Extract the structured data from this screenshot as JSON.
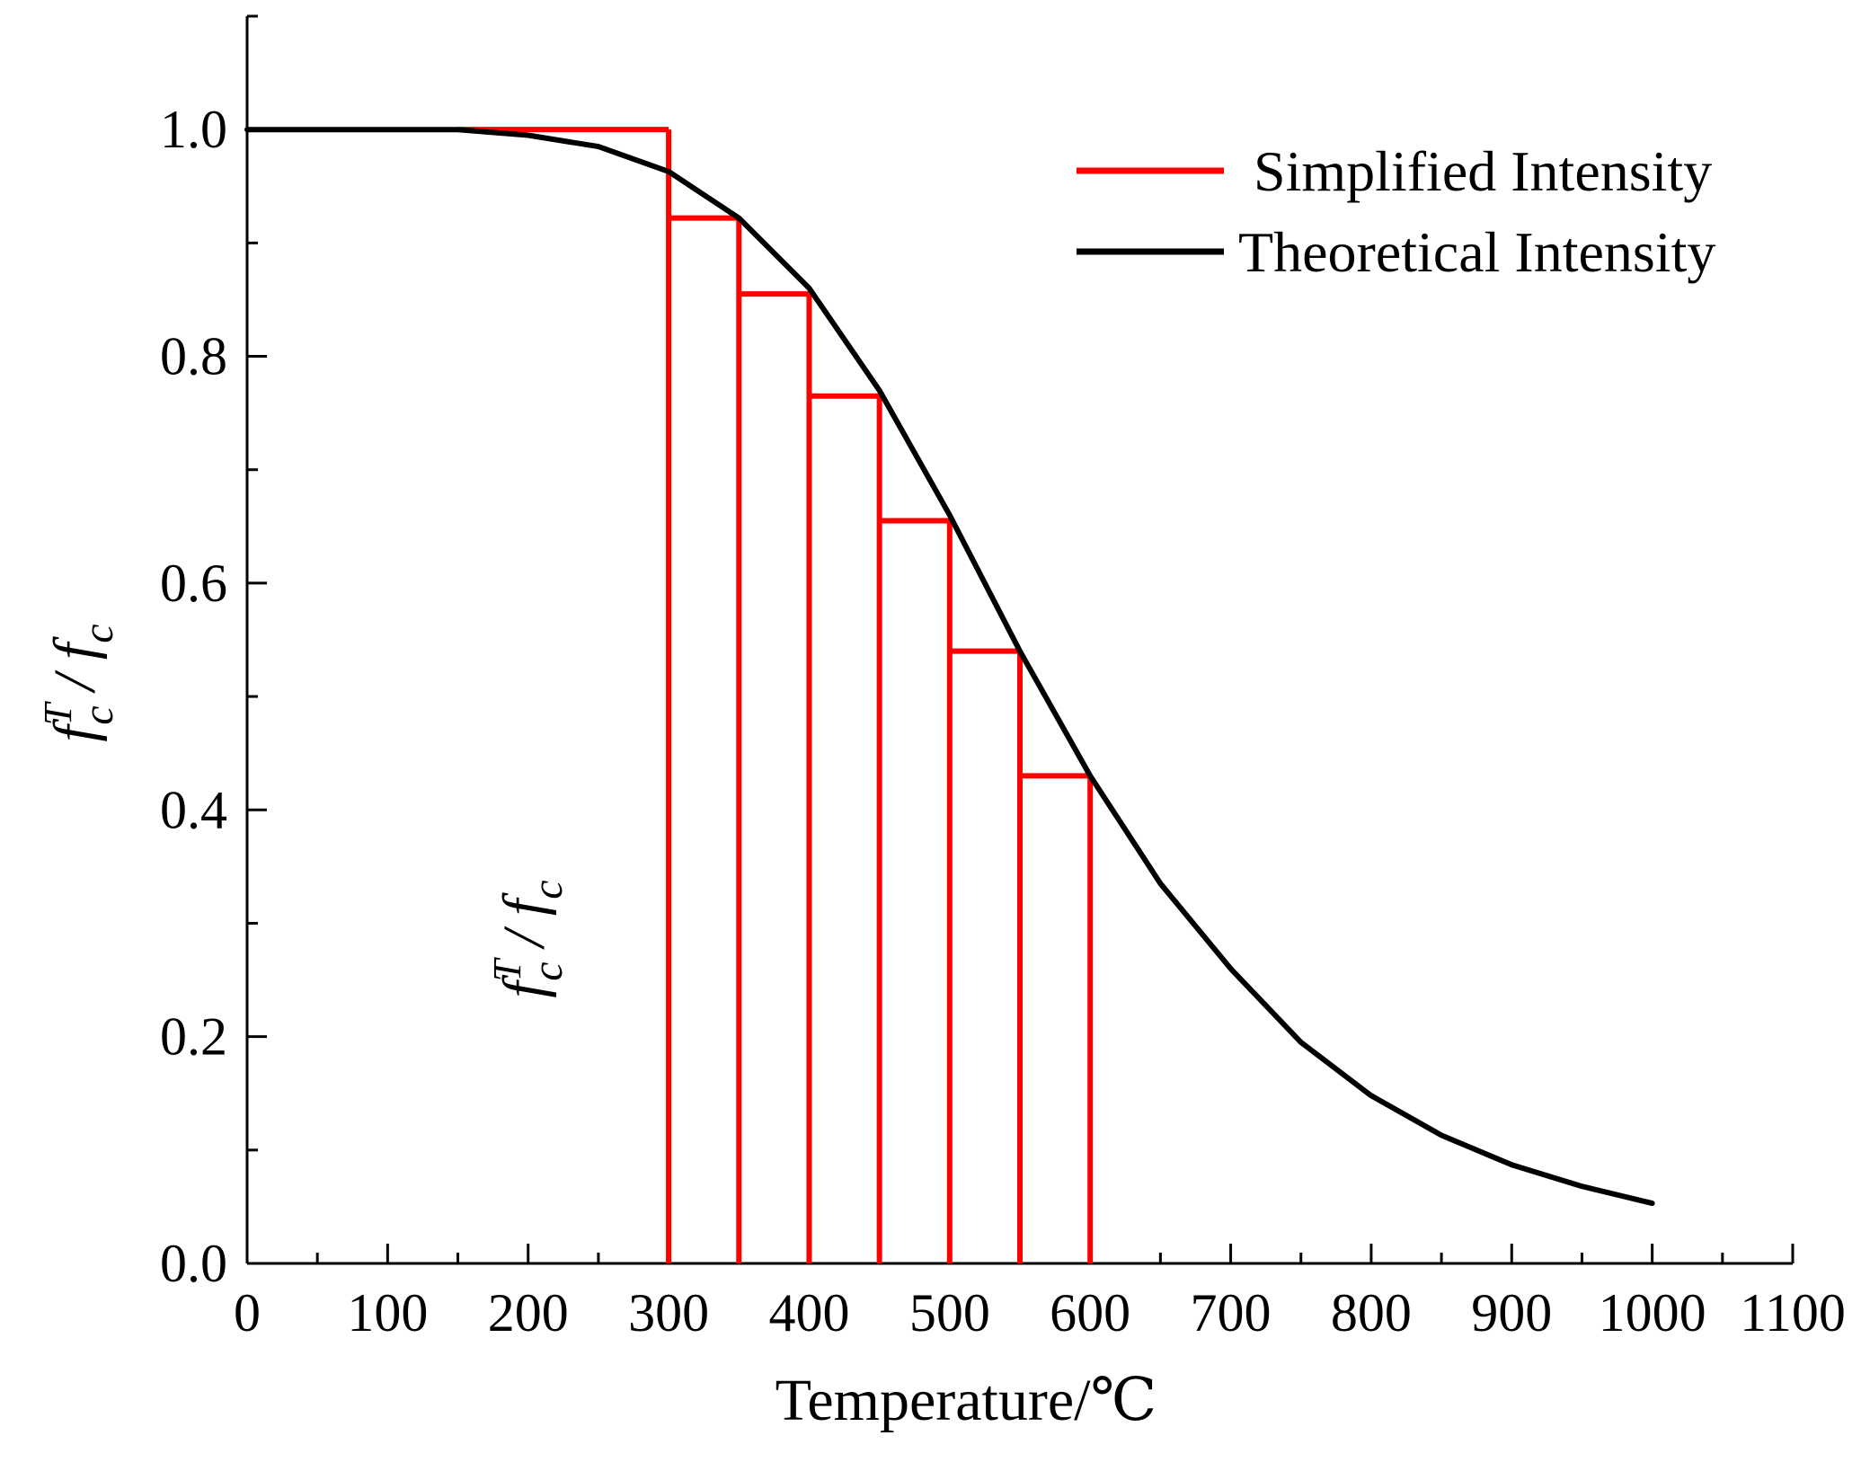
{
  "chart_data": {
    "type": "line",
    "title": "",
    "xlabel": "Temperature/℃",
    "ylabel": {
      "base": "f",
      "sup": "T",
      "sub": "c",
      "slash": " / ",
      "base2": "f",
      "sub2": "c"
    },
    "inner_annotation": {
      "base": "f",
      "sup": "T",
      "sub": "c",
      "slash": " / ",
      "base2": "f",
      "sub2": "c"
    },
    "xlim": [
      0,
      1100
    ],
    "ylim": [
      0,
      1.1
    ],
    "x_ticks": [
      0,
      100,
      200,
      300,
      400,
      500,
      600,
      700,
      800,
      900,
      1000,
      1100
    ],
    "x_tick_labels": [
      "0",
      "100",
      "200",
      "300",
      "400",
      "500",
      "600",
      "700",
      "800",
      "900",
      "1000",
      "1100"
    ],
    "y_ticks": [
      0.0,
      0.2,
      0.4,
      0.6,
      0.8,
      1.0
    ],
    "y_tick_labels": [
      "0.0",
      "0.2",
      "0.4",
      "0.6",
      "0.8",
      "1.0"
    ],
    "grid": false,
    "legend_position": "top-right",
    "series": [
      {
        "name": "Simplified Intensity",
        "color": "#ff0000",
        "style": "step",
        "steps": [
          {
            "x0": 150,
            "x1": 300,
            "y": 1.0
          },
          {
            "x0": 300,
            "x1": 350,
            "y": 0.922
          },
          {
            "x0": 350,
            "x1": 400,
            "y": 0.855
          },
          {
            "x0": 400,
            "x1": 450,
            "y": 0.765
          },
          {
            "x0": 450,
            "x1": 500,
            "y": 0.655
          },
          {
            "x0": 500,
            "x1": 550,
            "y": 0.54
          },
          {
            "x0": 550,
            "x1": 600,
            "y": 0.43
          }
        ],
        "vertical_lines": [
          {
            "x": 300,
            "y_top": 1.0
          },
          {
            "x": 350,
            "y_top": 0.922
          },
          {
            "x": 400,
            "y_top": 0.855
          },
          {
            "x": 450,
            "y_top": 0.765
          },
          {
            "x": 500,
            "y_top": 0.655
          },
          {
            "x": 550,
            "y_top": 0.54
          },
          {
            "x": 600,
            "y_top": 0.43
          }
        ]
      },
      {
        "name": "Theoretical Intensity",
        "color": "#000000",
        "style": "line",
        "x": [
          0,
          50,
          100,
          150,
          200,
          250,
          300,
          350,
          400,
          450,
          500,
          550,
          600,
          650,
          700,
          750,
          800,
          850,
          900,
          950,
          1000
        ],
        "y": [
          1.0,
          1.0,
          1.0,
          1.0,
          0.995,
          0.985,
          0.963,
          0.922,
          0.86,
          0.77,
          0.66,
          0.54,
          0.43,
          0.335,
          0.26,
          0.195,
          0.148,
          0.113,
          0.087,
          0.068,
          0.053
        ]
      }
    ]
  }
}
